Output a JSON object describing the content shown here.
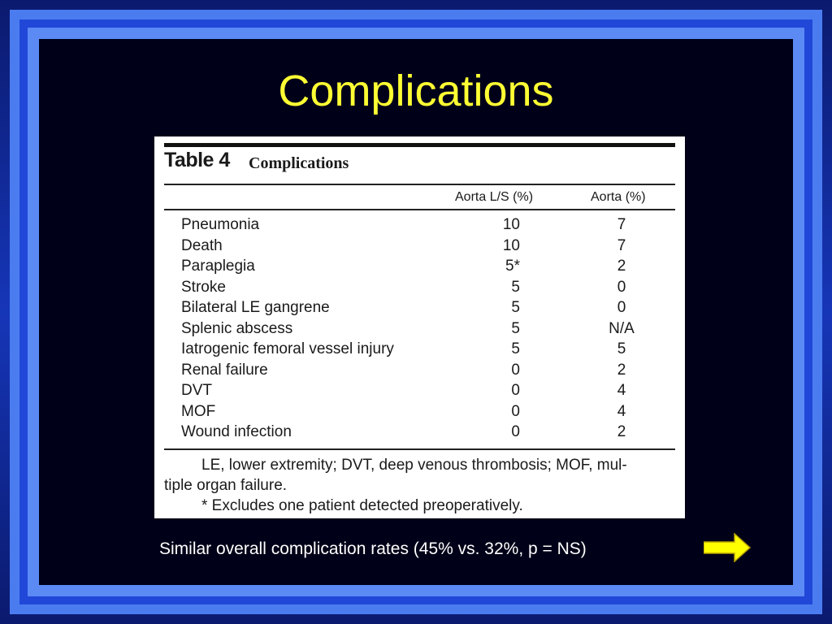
{
  "slide": {
    "title": "Complications",
    "caption": "Similar overall complication rates (45% vs. 32%, p = NS)"
  },
  "table": {
    "label": "Table 4",
    "name": "Complications",
    "columns": [
      "Aorta L/S (%)",
      "Aorta (%)"
    ],
    "rows": [
      {
        "label": "Pneumonia",
        "aorta_ls": "10",
        "aorta": "7"
      },
      {
        "label": "Death",
        "aorta_ls": "10",
        "aorta": "7"
      },
      {
        "label": "Paraplegia",
        "aorta_ls": "5*",
        "aorta": "2"
      },
      {
        "label": "Stroke",
        "aorta_ls": "5",
        "aorta": "0"
      },
      {
        "label": "Bilateral LE gangrene",
        "aorta_ls": "5",
        "aorta": "0"
      },
      {
        "label": "Splenic abscess",
        "aorta_ls": "5",
        "aorta": "N/A"
      },
      {
        "label": "Iatrogenic femoral vessel injury",
        "aorta_ls": "5",
        "aorta": "5"
      },
      {
        "label": "Renal failure",
        "aorta_ls": "0",
        "aorta": "2"
      },
      {
        "label": "DVT",
        "aorta_ls": "0",
        "aorta": "4"
      },
      {
        "label": "MOF",
        "aorta_ls": "0",
        "aorta": "4"
      },
      {
        "label": "Wound infection",
        "aorta_ls": "0",
        "aorta": "2"
      }
    ],
    "footnote_line1": "LE, lower extremity; DVT, deep venous thrombosis; MOF, mul-",
    "footnote_line2": "tiple organ failure.",
    "footnote_line3": "* Excludes one patient detected preoperatively."
  },
  "colors": {
    "title": "#ffff33",
    "arrow": "#ffff00",
    "frame": "#4a7cf0"
  },
  "icons": {
    "next": "right-arrow-icon"
  }
}
